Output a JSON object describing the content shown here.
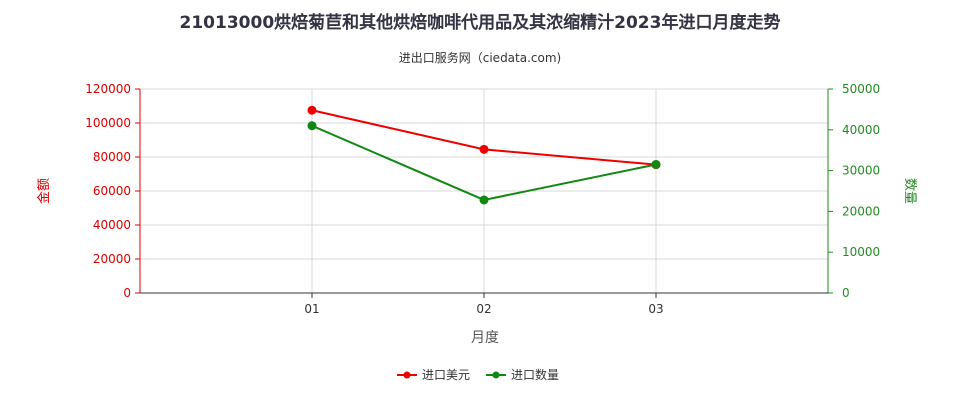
{
  "chart_data": {
    "type": "line",
    "title": "21013000烘焙菊苣和其他烘焙咖啡代用品及其浓缩精汁2023年进口月度走势",
    "subtitle": "进出口服务网（ciedata.com)",
    "xlabel": "月度",
    "ylabel_left": "金额",
    "ylabel_right": "数量",
    "categories": [
      "01",
      "02",
      "03"
    ],
    "y_left": {
      "min": 0,
      "max": 120000,
      "ticks": [
        0,
        20000,
        40000,
        60000,
        80000,
        100000,
        120000
      ],
      "color": "#dd0000"
    },
    "y_right": {
      "min": 0,
      "max": 50000,
      "ticks": [
        0,
        10000,
        20000,
        30000,
        40000,
        50000
      ],
      "color": "#228b22"
    },
    "series": [
      {
        "name": "进口美元",
        "axis": "left",
        "color": "#ee0000",
        "values": [
          107500,
          84500,
          75500
        ]
      },
      {
        "name": "进口数量",
        "axis": "right",
        "color": "#118811",
        "values": [
          41000,
          22800,
          31500
        ]
      }
    ],
    "grid": true,
    "legend_position": "bottom"
  }
}
